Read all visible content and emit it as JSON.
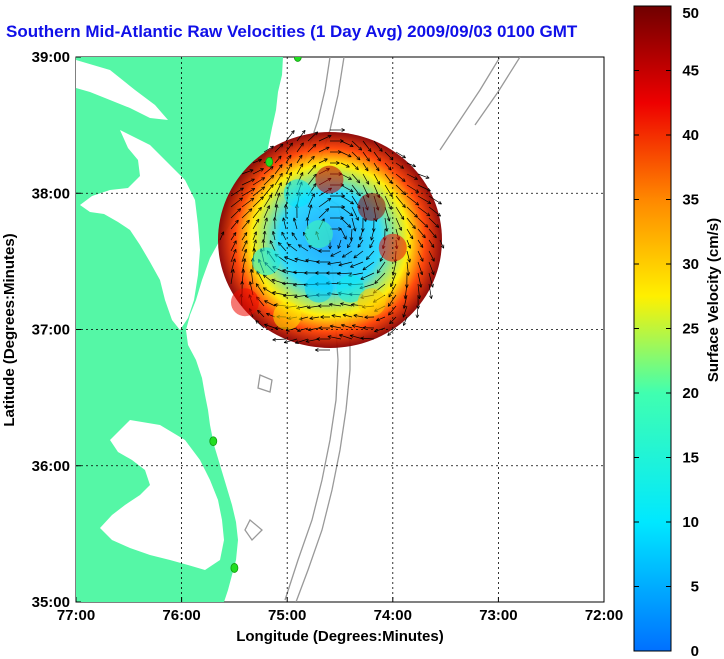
{
  "chart_data": {
    "type": "heatmap",
    "title": "Southern Mid-Atlantic Raw Velocities (1 Day Avg) 2009/09/03 0100 GMT",
    "xlabel": "Longitude (Degrees:Minutes)",
    "ylabel": "Latitude (Degrees:Minutes)",
    "x_ticks": [
      "77:00",
      "76:00",
      "75:00",
      "74:00",
      "73:00",
      "72:00"
    ],
    "y_ticks": [
      "39:00",
      "38:00",
      "37:00",
      "36:00",
      "35:00"
    ],
    "xlim": [
      -77,
      -72
    ],
    "ylim": [
      35,
      39
    ],
    "grid": true,
    "colorbar": {
      "label": "Surface Velocity (cm/s)",
      "min": 0,
      "max": 50,
      "ticks": [
        "0",
        "5",
        "10",
        "15",
        "20",
        "25",
        "30",
        "35",
        "40",
        "45",
        "50"
      ]
    },
    "stations": [
      {
        "lon": -74.9,
        "lat": 39.0
      },
      {
        "lon": -75.17,
        "lat": 38.23
      },
      {
        "lon": -75.7,
        "lat": 36.18
      },
      {
        "lon": -75.5,
        "lat": 35.25
      }
    ],
    "field_points": [
      {
        "lon": -74.6,
        "lat": 38.1,
        "speed": 45
      },
      {
        "lon": -74.2,
        "lat": 37.9,
        "speed": 48
      },
      {
        "lon": -74.0,
        "lat": 37.6,
        "speed": 42
      },
      {
        "lon": -74.9,
        "lat": 38.0,
        "speed": 10
      },
      {
        "lon": -74.7,
        "lat": 37.7,
        "speed": 20
      },
      {
        "lon": -75.2,
        "lat": 37.5,
        "speed": 12
      },
      {
        "lon": -74.7,
        "lat": 37.3,
        "speed": 8
      },
      {
        "lon": -74.4,
        "lat": 37.3,
        "speed": 12
      },
      {
        "lon": -75.4,
        "lat": 37.2,
        "speed": 42
      },
      {
        "lon": -75.0,
        "lat": 37.1,
        "speed": 28
      },
      {
        "lon": -74.2,
        "lat": 37.2,
        "speed": 30
      }
    ]
  },
  "colors": {
    "land": "#55f7a6",
    "title": "#1010e8",
    "station": "#22dd22",
    "contour": "#999999",
    "vector": "#000000"
  }
}
